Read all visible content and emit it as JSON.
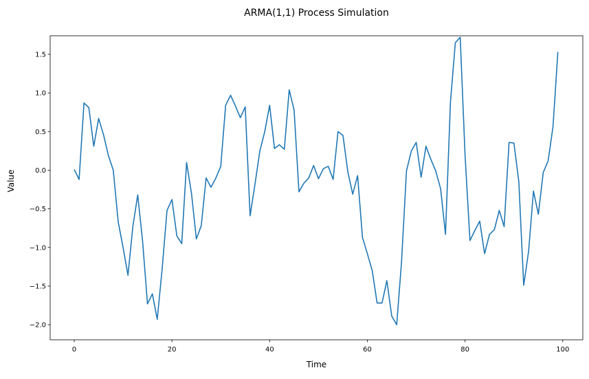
{
  "chart_data": {
    "type": "line",
    "title": "ARMA(1,1) Process Simulation",
    "xlabel": "Time",
    "ylabel": "Value",
    "xlim": [
      -4.92,
      104.1
    ],
    "ylim": [
      -2.195,
      1.74
    ],
    "xticks": [
      0,
      20,
      40,
      60,
      80,
      100
    ],
    "xtick_labels": [
      "0",
      "20",
      "40",
      "60",
      "80",
      "100"
    ],
    "yticks": [
      -2.0,
      -1.5,
      -1.0,
      -0.5,
      0.0,
      0.5,
      1.0,
      1.5
    ],
    "ytick_labels": [
      "−2.0",
      "−1.5",
      "−1.0",
      "−0.5",
      "0.0",
      "0.5",
      "1.0",
      "1.5"
    ],
    "grid": false,
    "line_color": "#1f77b4",
    "series": [
      {
        "values": [
          0.01,
          -0.12,
          0.87,
          0.81,
          0.31,
          0.67,
          0.46,
          0.19,
          0.0,
          -0.67,
          -1.0,
          -1.36,
          -0.73,
          -0.32,
          -0.92,
          -1.73,
          -1.6,
          -1.93,
          -1.28,
          -0.52,
          -0.38,
          -0.85,
          -0.95,
          0.1,
          -0.3,
          -0.89,
          -0.72,
          -0.1,
          -0.22,
          -0.1,
          0.05,
          0.84,
          0.97,
          0.83,
          0.68,
          0.82,
          -0.59,
          -0.18,
          0.25,
          0.5,
          0.84,
          0.28,
          0.33,
          0.27,
          1.04,
          0.78,
          -0.28,
          -0.17,
          -0.1,
          0.06,
          -0.11,
          0.02,
          0.05,
          -0.12,
          0.5,
          0.45,
          -0.02,
          -0.31,
          -0.07,
          -0.87,
          -1.08,
          -1.3,
          -1.72,
          -1.72,
          -1.43,
          -1.89,
          -2.0,
          -1.18,
          -0.01,
          0.25,
          0.36,
          -0.09,
          0.31,
          0.14,
          -0.01,
          -0.24,
          -0.83,
          0.88,
          1.65,
          1.72,
          0.19,
          -0.91,
          -0.78,
          -0.66,
          -1.08,
          -0.83,
          -0.77,
          -0.52,
          -0.73,
          0.36,
          0.35,
          -0.15,
          -1.49,
          -1.05,
          -0.27,
          -0.57,
          -0.03,
          0.12,
          0.56,
          1.53
        ]
      }
    ]
  }
}
